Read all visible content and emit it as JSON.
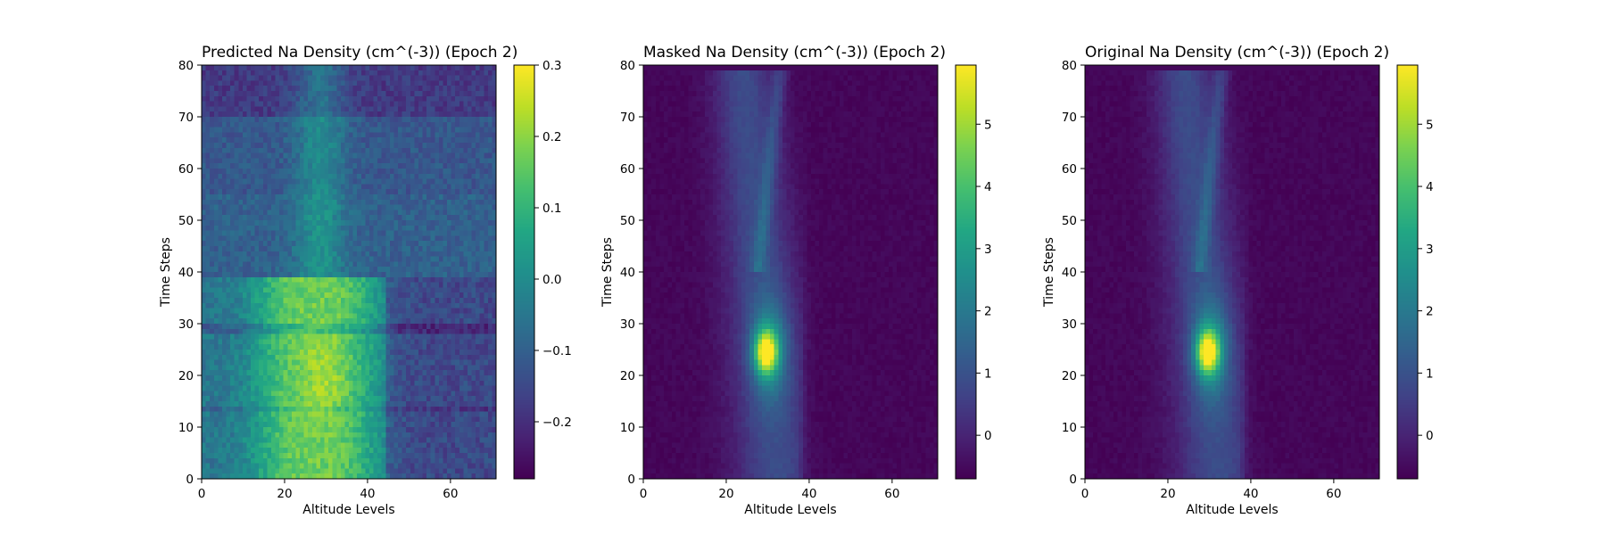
{
  "chart_data": [
    {
      "type": "heatmap",
      "title": "Predicted Na Density (cm^(-3)) (Epoch 2)",
      "xlabel": "Altitude Levels",
      "ylabel": "Time Steps",
      "xlim": [
        0,
        71
      ],
      "ylim": [
        0,
        80
      ],
      "xticks": [
        0,
        20,
        40,
        60
      ],
      "yticks": [
        0,
        10,
        20,
        30,
        40,
        50,
        60,
        70,
        80
      ],
      "colormap": "viridis",
      "colorbar": {
        "min": -0.28,
        "max": 0.3,
        "ticks": [
          -0.2,
          -0.1,
          0.0,
          0.1,
          0.2,
          0.3
        ],
        "tick_labels": [
          "−0.2",
          "−0.1",
          "0.0",
          "0.1",
          "0.2",
          "0.3"
        ]
      },
      "field": "predicted"
    },
    {
      "type": "heatmap",
      "title": "Masked Na Density (cm^(-3)) (Epoch 2)",
      "xlabel": "Altitude Levels",
      "ylabel": "Time Steps",
      "xlim": [
        0,
        71
      ],
      "ylim": [
        0,
        80
      ],
      "xticks": [
        0,
        20,
        40,
        60
      ],
      "yticks": [
        0,
        10,
        20,
        30,
        40,
        50,
        60,
        70,
        80
      ],
      "colormap": "viridis",
      "colorbar": {
        "min": -0.7,
        "max": 5.95,
        "ticks": [
          0,
          1,
          2,
          3,
          4,
          5
        ],
        "tick_labels": [
          "0",
          "1",
          "2",
          "3",
          "4",
          "5"
        ]
      },
      "field": "masked"
    },
    {
      "type": "heatmap",
      "title": "Original Na Density (cm^(-3)) (Epoch 2)",
      "xlabel": "Altitude Levels",
      "ylabel": "Time Steps",
      "xlim": [
        0,
        71
      ],
      "ylim": [
        0,
        80
      ],
      "xticks": [
        0,
        20,
        40,
        60
      ],
      "yticks": [
        0,
        10,
        20,
        30,
        40,
        50,
        60,
        70,
        80
      ],
      "colormap": "viridis",
      "colorbar": {
        "min": -0.7,
        "max": 5.95,
        "ticks": [
          0,
          1,
          2,
          3,
          4,
          5
        ],
        "tick_labels": [
          "0",
          "1",
          "2",
          "3",
          "4",
          "5"
        ]
      },
      "field": "original"
    }
  ]
}
